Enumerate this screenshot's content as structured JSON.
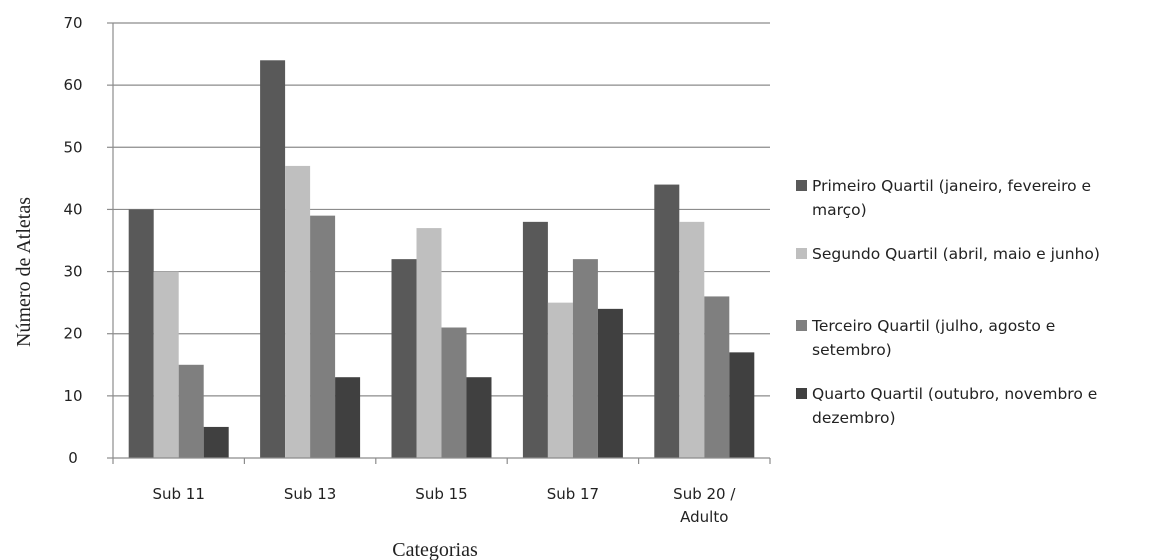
{
  "chart_data": {
    "type": "bar",
    "xlabel": "Categorias",
    "ylabel": "Número de Atletas",
    "ylim": [
      0,
      70
    ],
    "yticks": [
      0,
      10,
      20,
      30,
      40,
      50,
      60,
      70
    ],
    "grid": true,
    "legend_position": "right",
    "categories": [
      [
        "Sub 11"
      ],
      [
        "Sub 13"
      ],
      [
        "Sub 15"
      ],
      [
        "Sub 17"
      ],
      [
        "Sub 20 /",
        "Adulto"
      ]
    ],
    "series": [
      {
        "name": [
          "Primeiro Quartil (janeiro, fevereiro e",
          "março)"
        ],
        "color": "#595959",
        "values": [
          40,
          64,
          32,
          38,
          44
        ]
      },
      {
        "name": [
          "Segundo Quartil (abril, maio e junho)"
        ],
        "color": "#bfbfbf",
        "values": [
          30,
          47,
          37,
          25,
          38
        ]
      },
      {
        "name": [
          "Terceiro Quartil (julho, agosto  e",
          "setembro)"
        ],
        "color": "#7f7f7f",
        "values": [
          15,
          39,
          21,
          32,
          26
        ]
      },
      {
        "name": [
          "Quarto Quartil (outubro, novembro e",
          "dezembro)"
        ],
        "color": "#404040",
        "values": [
          5,
          13,
          13,
          24,
          17
        ]
      }
    ]
  }
}
